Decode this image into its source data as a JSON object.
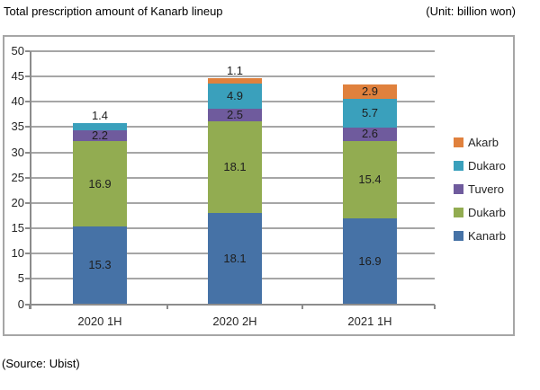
{
  "header": {
    "unit_note": "(Unit: billion won)"
  },
  "source": "(Source: Ubist)",
  "chart_data": {
    "type": "bar",
    "stacked": true,
    "title": "Total prescription amount of Kanarb lineup",
    "unit_note": "(Unit: billion won)",
    "categories": [
      "2020 1H",
      "2020 2H",
      "2021 1H"
    ],
    "series": [
      {
        "name": "Kanarb",
        "color": "#4672A6",
        "values": [
          15.3,
          18.1,
          16.9
        ]
      },
      {
        "name": "Dukarb",
        "color": "#92AC51",
        "values": [
          16.9,
          18.1,
          15.4
        ]
      },
      {
        "name": "Tuvero",
        "color": "#6F5B9D",
        "values": [
          2.2,
          2.5,
          2.6
        ]
      },
      {
        "name": "Dukaro",
        "color": "#3AA0BC",
        "values": [
          1.4,
          4.9,
          5.7
        ]
      },
      {
        "name": "Akarb",
        "color": "#E0813D",
        "values": [
          null,
          1.1,
          2.9
        ]
      }
    ],
    "legend_order": [
      "Akarb",
      "Dukaro",
      "Tuvero",
      "Dukarb",
      "Kanarb"
    ],
    "legend_position": "right",
    "ylim": [
      0,
      50
    ],
    "ytick_step": 5,
    "grid": true,
    "xlabel": "",
    "ylabel": ""
  }
}
